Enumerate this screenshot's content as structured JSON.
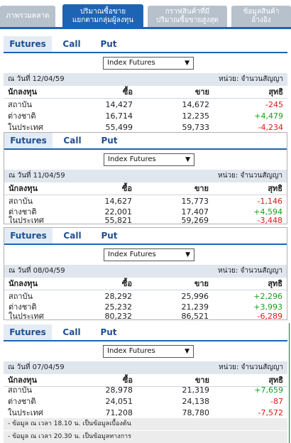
{
  "tabs": [
    {
      "label": "ภาพรวมตลาด",
      "active": false
    },
    {
      "label": "ปริมาณซื้อขาย\nแยกตามกลุ่มผู้ลงทุน",
      "active": true
    },
    {
      "label": "กราฟสินค้าที่มี\nปริมาณซื้อขายสูงสุด",
      "active": false
    },
    {
      "label": "ข้อมูลสินค้า\nอ้างอิง",
      "active": false
    }
  ],
  "subtabs": [
    "Futures",
    "Call",
    "Put"
  ],
  "select_value": "Index Futures",
  "unit_label": "หน่วย: จำนวนสัญญา",
  "headers": {
    "investor": "นักลงทุน",
    "buy": "ซื้อ",
    "sell": "ขาย",
    "net": "สุทธิ"
  },
  "panels": [
    {
      "date_label": "ณ วันที่ 12/04/59",
      "rows": [
        {
          "name": "สถาบัน",
          "buy": "14,427",
          "sell": "14,672",
          "net": "-245"
        },
        {
          "name": "ต่างชาติ",
          "buy": "16,714",
          "sell": "12,235",
          "net": "+4,479"
        },
        {
          "name": "ในประเทศ",
          "buy": "55,499",
          "sell": "59,733",
          "net": "-4,234"
        }
      ]
    },
    {
      "date_label": "ณ วันที่ 11/04/59",
      "rows": [
        {
          "name": "สถาบัน",
          "buy": "14,627",
          "sell": "15,773",
          "net": "-1,146"
        },
        {
          "name": "ต่างชาติ",
          "buy": "22,001",
          "sell": "17,407",
          "net": "+4,594"
        },
        {
          "name": "ในประเทศ",
          "buy": "55,821",
          "sell": "59,269",
          "net": "-3,448"
        }
      ]
    },
    {
      "date_label": "ณ วันที่ 08/04/59",
      "rows": [
        {
          "name": "สถาบัน",
          "buy": "28,292",
          "sell": "25,996",
          "net": "+2,296"
        },
        {
          "name": "ต่างชาติ",
          "buy": "25,232",
          "sell": "21,239",
          "net": "+3,993"
        },
        {
          "name": "ในประเทศ",
          "buy": "80,232",
          "sell": "86,521",
          "net": "-6,289"
        }
      ]
    },
    {
      "date_label": "ณ วันที่ 07/04/59",
      "rows": [
        {
          "name": "สถาบัน",
          "buy": "28,978",
          "sell": "21,319",
          "net": "+7,659"
        },
        {
          "name": "ต่างชาติ",
          "buy": "24,051",
          "sell": "24,138",
          "net": "-87"
        },
        {
          "name": "ในประเทศ",
          "buy": "71,208",
          "sell": "78,780",
          "net": "-7,572"
        }
      ]
    }
  ],
  "notes": [
    "- ข้อมูล ณ เวลา 18.10 น. เป็นข้อมูลเบื้องต้น",
    "- ข้อมูล ณ เวลา 20.30 น. เป็นข้อมูลทางการ"
  ],
  "colors": {
    "accent": "#1e64b4",
    "negative": "#e01616",
    "positive": "#18a018"
  }
}
